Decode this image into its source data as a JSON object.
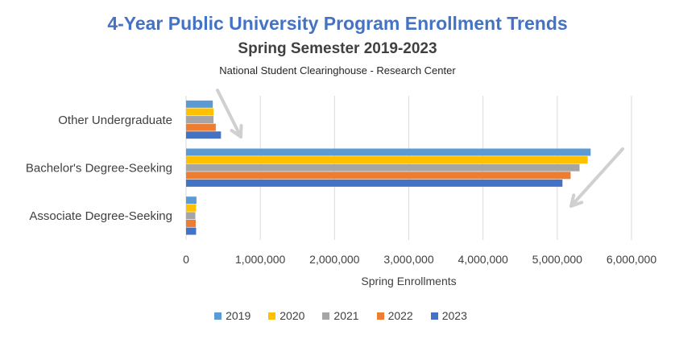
{
  "chart_data": {
    "type": "bar",
    "orientation": "horizontal",
    "title": "4-Year Public University Program Enrollment Trends",
    "subtitle": "Spring Semester 2019-2023",
    "source": "National Student Clearinghouse - Research Center",
    "xlabel": "Spring Enrollments",
    "ylabel": "",
    "xlim": [
      0,
      6000000
    ],
    "xticks": [
      0,
      1000000,
      2000000,
      3000000,
      4000000,
      5000000,
      6000000
    ],
    "xtick_labels": [
      "0",
      "1,000,000",
      "2,000,000",
      "3,000,000",
      "4,000,000",
      "5,000,000",
      "6,000,000"
    ],
    "categories": [
      "Other Undergraduate",
      "Bachelor's Degree-Seeking",
      "Associate Degree-Seeking"
    ],
    "series": [
      {
        "name": "2019",
        "color": "#5B9BD5",
        "values": [
          360000,
          5450000,
          140000
        ]
      },
      {
        "name": "2020",
        "color": "#FFC000",
        "values": [
          370000,
          5410000,
          135000
        ]
      },
      {
        "name": "2021",
        "color": "#A5A5A5",
        "values": [
          370000,
          5300000,
          125000
        ]
      },
      {
        "name": "2022",
        "color": "#ED7D31",
        "values": [
          400000,
          5180000,
          130000
        ]
      },
      {
        "name": "2023",
        "color": "#4472C4",
        "values": [
          470000,
          5070000,
          135000
        ]
      }
    ],
    "grid": true,
    "legend": "bottom",
    "annotations": [
      "down-arrow near Other Undergraduate",
      "down-arrow near Bachelor's Degree-Seeking"
    ]
  }
}
